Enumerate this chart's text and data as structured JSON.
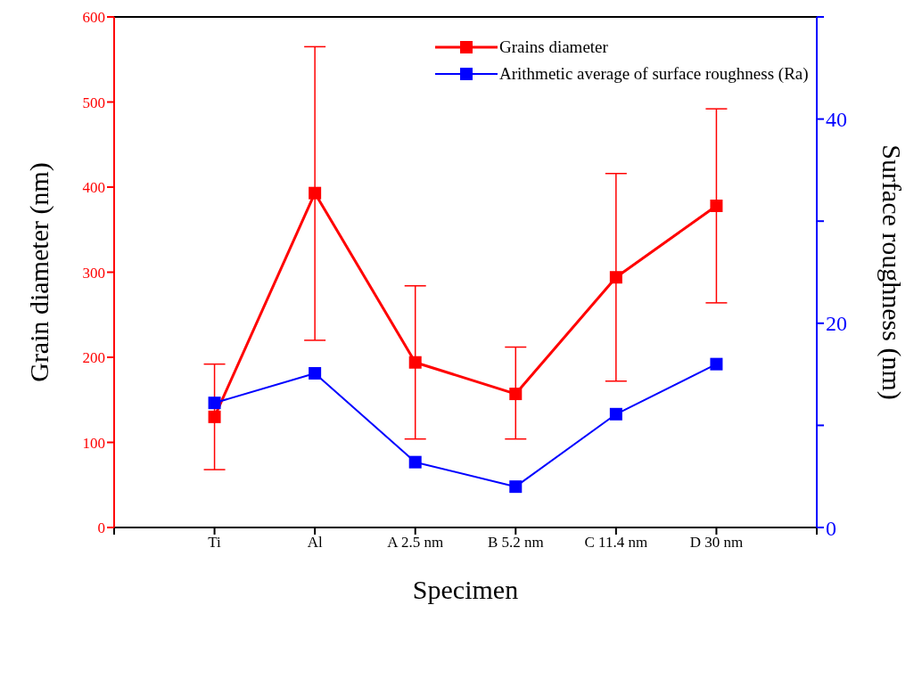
{
  "chart_data": {
    "type": "line",
    "xlabel": "Specimen",
    "ylabel": "Grain diameter (nm)",
    "y2label": "Surface roughness (nm)",
    "categories": [
      "Ti",
      "Al",
      "A 2.5 nm",
      "B 5.2 nm",
      "C 11.4 nm",
      "D 30 nm"
    ],
    "series": [
      {
        "name": "Grains diameter",
        "color": "#ff0000",
        "values": [
          130,
          393,
          194,
          157,
          294,
          378
        ],
        "errors": [
          [
            68,
            192
          ],
          [
            220,
            565
          ],
          [
            104,
            284
          ],
          [
            104,
            212
          ],
          [
            172,
            416
          ],
          [
            264,
            492
          ]
        ]
      },
      {
        "name": "Arithmetic average of surface roughness (Ra)",
        "color": "#0000ff",
        "axis": "y2",
        "values": [
          12.2,
          15.1,
          6.4,
          4.0,
          11.1,
          16.0
        ]
      }
    ],
    "ylim": [
      0,
      600
    ],
    "yticks": [
      0,
      100,
      200,
      300,
      400,
      500,
      600
    ],
    "y2lim": [
      0,
      50
    ],
    "y2ticks": [
      0,
      {
        "value": 10,
        "label": null
      },
      20,
      {
        "value": 30,
        "label": null
      },
      40,
      {
        "value": 50,
        "label": null
      }
    ],
    "legend": "top right",
    "marker": "square",
    "line_style": "solid",
    "grid": false
  }
}
